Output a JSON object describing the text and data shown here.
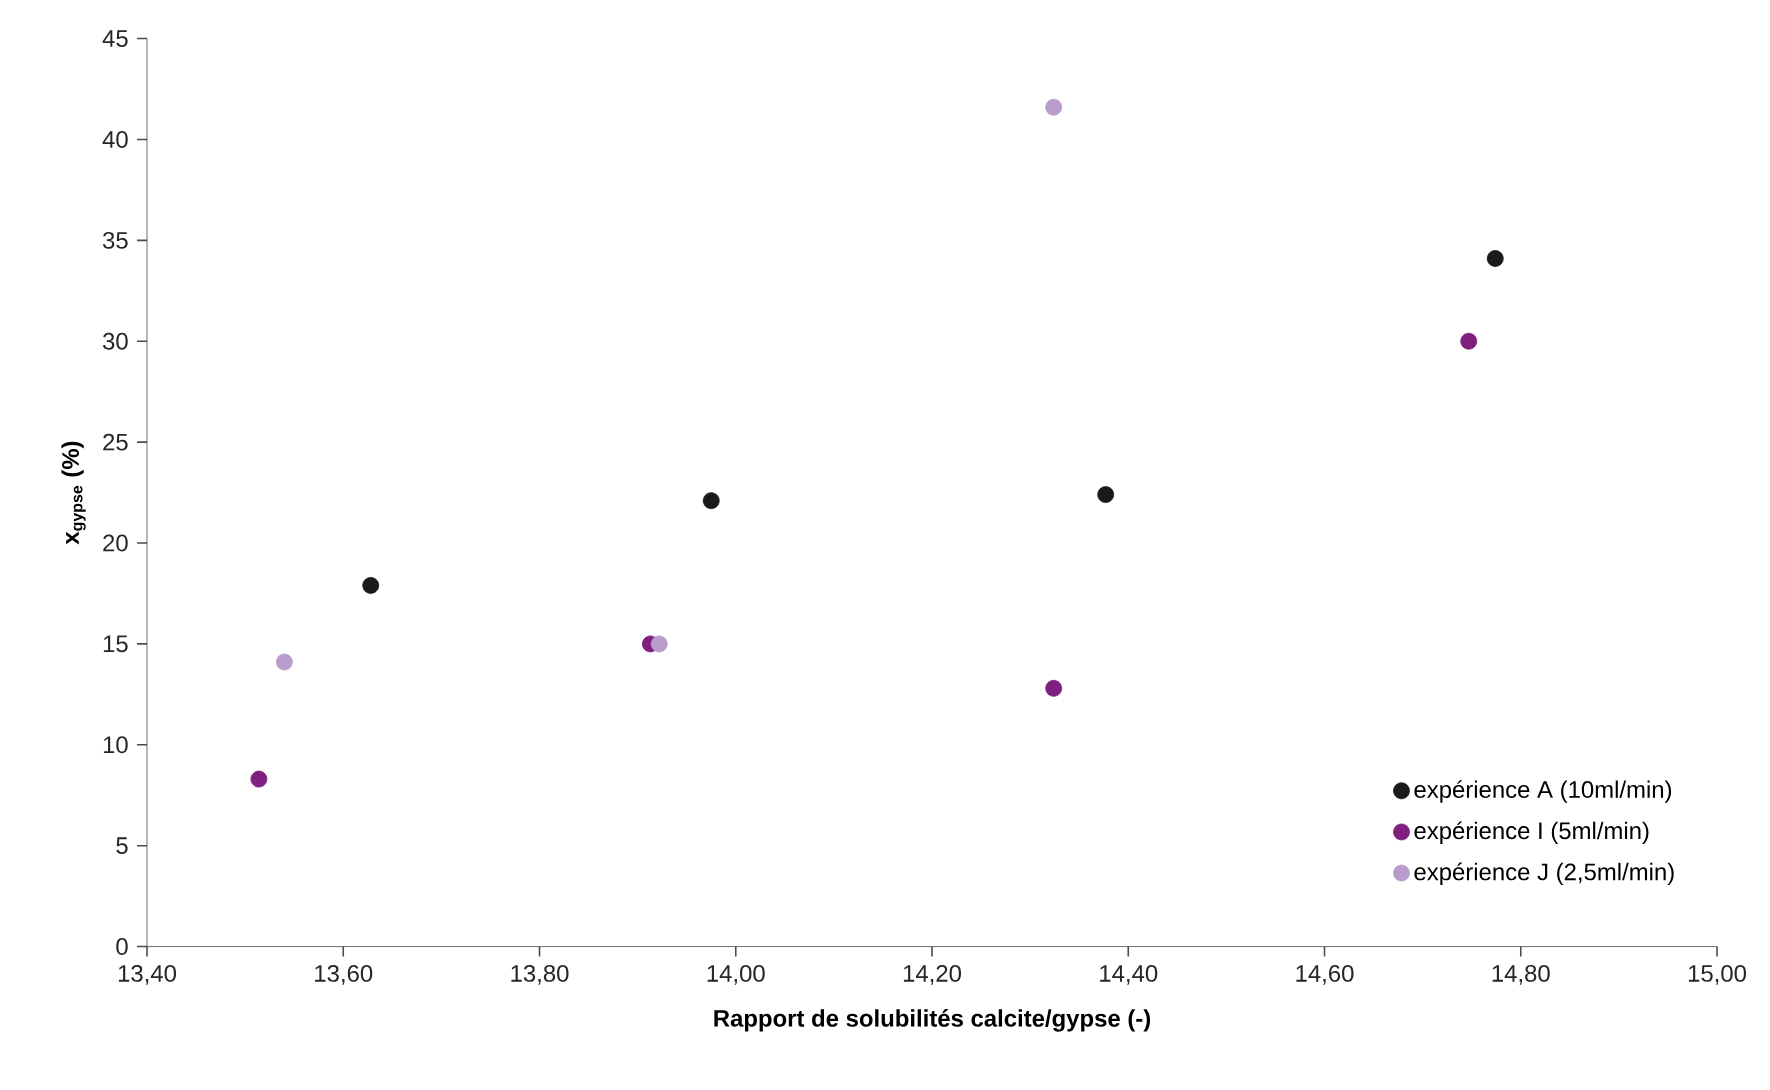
{
  "chart_data": {
    "type": "scatter",
    "xlabel": "Rapport de solubilités calcite/gypse (-)",
    "ylabel": "x$_{gypse}$ (%)",
    "xlim": [
      13.4,
      15.0
    ],
    "xticks": [
      {
        "value": 13.4,
        "label": "13,40"
      },
      {
        "value": 13.6,
        "label": "13,60"
      },
      {
        "value": 13.8,
        "label": "13,80"
      },
      {
        "value": 14.0,
        "label": "14,00"
      },
      {
        "value": 14.2,
        "label": "14,20"
      },
      {
        "value": 14.4,
        "label": "14,40"
      },
      {
        "value": 14.6,
        "label": "14,60"
      },
      {
        "value": 14.8,
        "label": "14,80"
      },
      {
        "value": 15.0,
        "label": "15,00"
      }
    ],
    "ylim": [
      0,
      45
    ],
    "yticks": [
      0,
      5,
      10,
      15,
      20,
      25,
      30,
      35,
      40,
      45
    ],
    "marker": "circle",
    "legend": "bottom right",
    "series": [
      {
        "name": "expérience A (10ml/min)",
        "color": "#1a1a1a",
        "x": [
          13.628,
          13.975,
          14.377,
          14.774
        ],
        "values": [
          17.9,
          22.1,
          22.4,
          34.1
        ]
      },
      {
        "name": "expérience I (5ml/min)",
        "color": "#7f1f7f",
        "x": [
          13.514,
          13.913,
          14.324,
          14.747
        ],
        "values": [
          8.3,
          15.0,
          12.8,
          30.0
        ]
      },
      {
        "name": "expérience J (2,5ml/min)",
        "color": "#b89ccb",
        "x": [
          13.54,
          13.922,
          14.324
        ],
        "values": [
          14.1,
          15.0,
          41.6
        ]
      }
    ]
  }
}
